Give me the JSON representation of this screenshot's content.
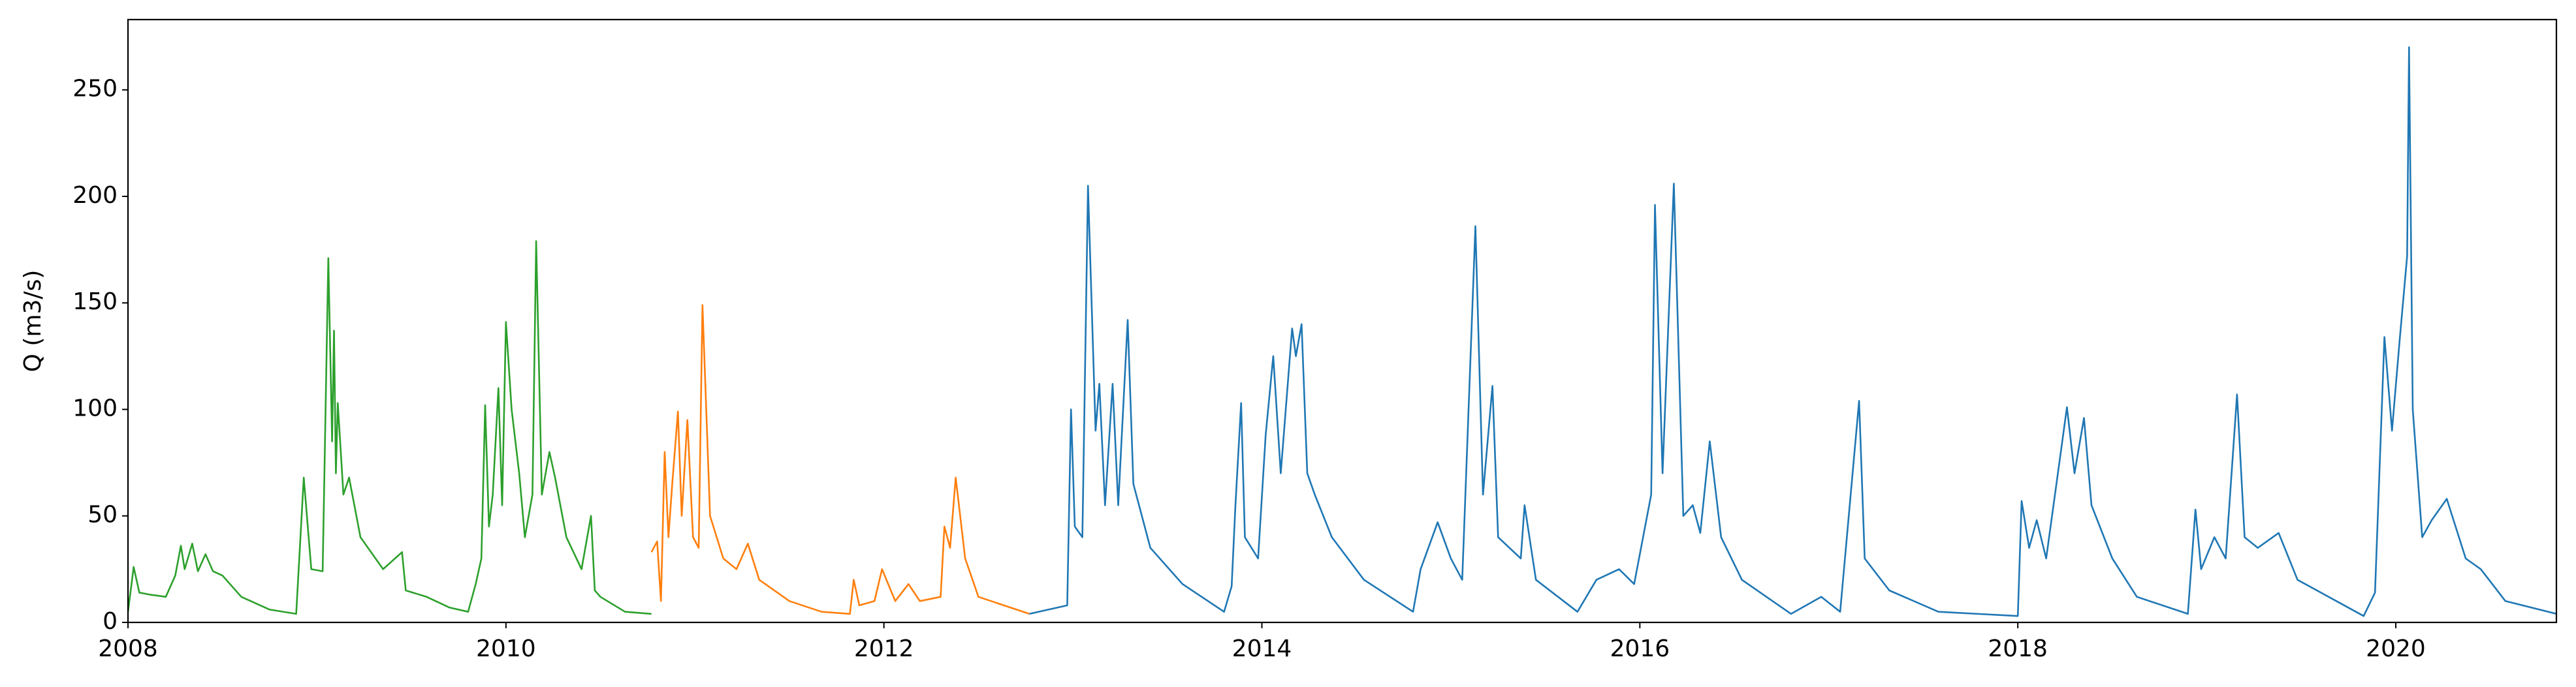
{
  "chart_data": {
    "type": "line",
    "ylabel": "Q (m3/s)",
    "xlim": [
      2008,
      2020.85
    ],
    "xticks": [
      2008,
      2010,
      2012,
      2014,
      2016,
      2018,
      2020
    ],
    "ylim": [
      0,
      283
    ],
    "yticks": [
      0,
      50,
      100,
      150,
      200,
      250
    ],
    "grid": false,
    "series": [
      {
        "color": "#2ca02c",
        "x": [
          2008.0,
          2008.03,
          2008.06,
          2008.12,
          2008.2,
          2008.25,
          2008.28,
          2008.3,
          2008.34,
          2008.37,
          2008.41,
          2008.45,
          2008.5,
          2008.6,
          2008.75,
          2008.89,
          2008.93,
          2008.97,
          2009.03,
          2009.06,
          2009.08,
          2009.09,
          2009.1,
          2009.11,
          2009.14,
          2009.17,
          2009.23,
          2009.35,
          2009.45,
          2009.47,
          2009.58,
          2009.7,
          2009.8,
          2009.84,
          2009.87,
          2009.89,
          2009.91,
          2009.93,
          2009.96,
          2009.98,
          2010.0,
          2010.03,
          2010.07,
          2010.1,
          2010.14,
          2010.16,
          2010.19,
          2010.23,
          2010.26,
          2010.32,
          2010.4,
          2010.45,
          2010.47,
          2010.5,
          2010.63,
          2010.77
        ],
        "values": [
          5,
          26,
          14,
          13,
          12,
          22,
          36,
          25,
          37,
          24,
          32,
          24,
          22,
          12,
          6,
          4,
          68,
          25,
          24,
          171,
          85,
          137,
          70,
          103,
          60,
          68,
          40,
          25,
          33,
          15,
          12,
          7,
          5,
          18,
          30,
          102,
          45,
          60,
          110,
          55,
          141,
          100,
          70,
          40,
          60,
          179,
          60,
          80,
          68,
          40,
          25,
          50,
          15,
          12,
          5,
          4
        ]
      },
      {
        "color": "#ff7f0e",
        "x": [
          2010.77,
          2010.8,
          2010.82,
          2010.84,
          2010.86,
          2010.88,
          2010.91,
          2010.93,
          2010.96,
          2010.99,
          2011.02,
          2011.04,
          2011.08,
          2011.15,
          2011.22,
          2011.28,
          2011.34,
          2011.5,
          2011.67,
          2011.82,
          2011.84,
          2011.87,
          2011.95,
          2011.99,
          2012.06,
          2012.13,
          2012.19,
          2012.3,
          2012.32,
          2012.35,
          2012.38,
          2012.43,
          2012.5,
          2012.77
        ],
        "values": [
          33,
          38,
          10,
          80,
          40,
          65,
          99,
          50,
          95,
          40,
          35,
          149,
          50,
          30,
          25,
          37,
          20,
          10,
          5,
          4,
          20,
          8,
          10,
          25,
          10,
          18,
          10,
          12,
          45,
          35,
          68,
          30,
          12,
          4
        ]
      },
      {
        "color": "#1f77b4",
        "x": [
          2012.77,
          2012.97,
          2012.99,
          2013.01,
          2013.05,
          2013.08,
          2013.12,
          2013.14,
          2013.17,
          2013.21,
          2013.24,
          2013.29,
          2013.32,
          2013.41,
          2013.58,
          2013.8,
          2013.84,
          2013.86,
          2013.89,
          2013.91,
          2013.98,
          2014.02,
          2014.06,
          2014.1,
          2014.16,
          2014.18,
          2014.21,
          2014.24,
          2014.28,
          2014.37,
          2014.54,
          2014.8,
          2014.84,
          2014.93,
          2015.0,
          2015.06,
          2015.13,
          2015.17,
          2015.22,
          2015.25,
          2015.37,
          2015.39,
          2015.45,
          2015.67,
          2015.77,
          2015.89,
          2015.97,
          2016.06,
          2016.08,
          2016.12,
          2016.18,
          2016.23,
          2016.28,
          2016.32,
          2016.37,
          2016.43,
          2016.54,
          2016.8,
          2016.96,
          2017.06,
          2017.16,
          2017.19,
          2017.32,
          2017.58,
          2018.0,
          2018.02,
          2018.06,
          2018.1,
          2018.15,
          2018.22,
          2018.26,
          2018.3,
          2018.35,
          2018.39,
          2018.5,
          2018.63,
          2018.9,
          2018.94,
          2018.97,
          2019.04,
          2019.1,
          2019.16,
          2019.2,
          2019.27,
          2019.38,
          2019.48,
          2019.83,
          2019.89,
          2019.94,
          2019.98,
          2020.02,
          2020.06,
          2020.07,
          2020.09,
          2020.14,
          2020.19,
          2020.27,
          2020.37,
          2020.45,
          2020.58,
          2020.85
        ],
        "values": [
          4,
          8,
          100,
          45,
          40,
          205,
          90,
          112,
          55,
          112,
          55,
          142,
          65,
          35,
          18,
          5,
          17,
          55,
          103,
          40,
          30,
          88,
          125,
          70,
          138,
          125,
          140,
          70,
          60,
          40,
          20,
          5,
          25,
          47,
          30,
          20,
          186,
          60,
          111,
          40,
          30,
          55,
          20,
          5,
          20,
          25,
          18,
          60,
          196,
          70,
          206,
          50,
          55,
          42,
          85,
          40,
          20,
          4,
          12,
          5,
          104,
          30,
          15,
          5,
          3,
          57,
          35,
          48,
          30,
          75,
          101,
          70,
          96,
          55,
          30,
          12,
          4,
          53,
          25,
          40,
          30,
          107,
          40,
          35,
          42,
          20,
          3,
          14,
          134,
          90,
          132,
          172,
          270,
          100,
          40,
          48,
          58,
          30,
          25,
          10,
          4
        ]
      }
    ]
  }
}
